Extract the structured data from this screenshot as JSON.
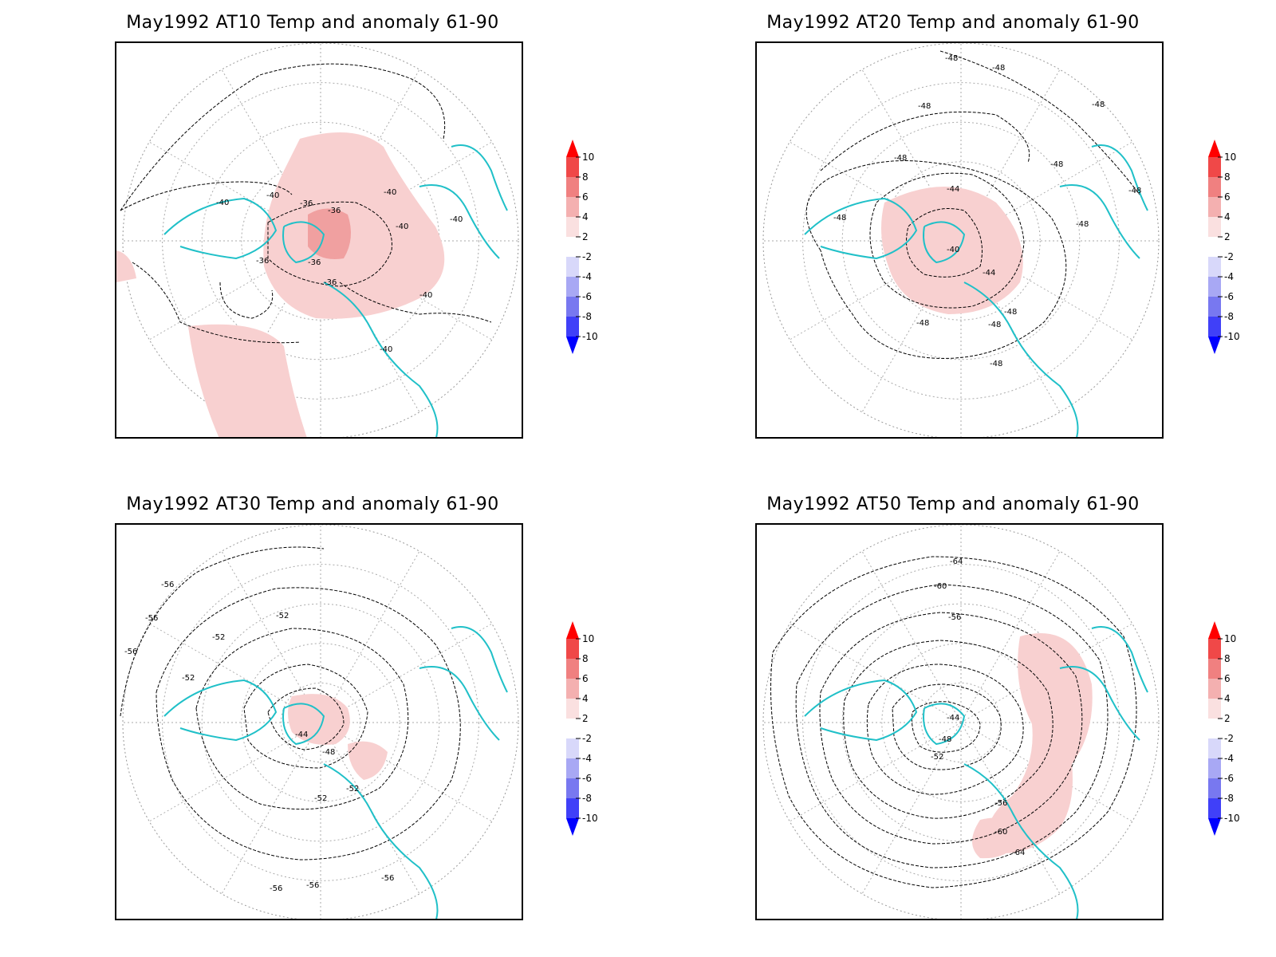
{
  "panels": [
    {
      "title": "May1992 AT10 Temp and anomaly 61-90",
      "contour_labels": [
        "-40",
        "-40",
        "-40",
        "-40",
        "-36",
        "-36",
        "-36",
        "-36",
        "-40",
        "-40",
        "-40",
        "-36"
      ],
      "colorbar_labels": [
        "10",
        "8",
        "6",
        "4",
        "2",
        "-2",
        "-4",
        "-6",
        "-8",
        "-10"
      ]
    },
    {
      "title": "May1992 AT20 Temp and anomaly 61-90",
      "contour_labels": [
        "-48",
        "-48",
        "-48",
        "-48",
        "-48",
        "-48",
        "-48",
        "-44",
        "-40",
        "-44",
        "-48",
        "-48",
        "-48",
        "-48",
        "-48",
        "-48"
      ],
      "colorbar_labels": [
        "10",
        "8",
        "6",
        "4",
        "2",
        "-2",
        "-4",
        "-6",
        "-8",
        "-10"
      ]
    },
    {
      "title": "May1992 AT30 Temp and anomaly 61-90",
      "contour_labels": [
        "-56",
        "-56",
        "-56",
        "-52",
        "-52",
        "-52",
        "-44",
        "-48",
        "-52",
        "-52",
        "-56",
        "-56",
        "-56"
      ],
      "colorbar_labels": [
        "10",
        "8",
        "6",
        "4",
        "2",
        "-2",
        "-4",
        "-6",
        "-8",
        "-10"
      ]
    },
    {
      "title": "May1992 AT50 Temp and anomaly 61-90",
      "contour_labels": [
        "-64",
        "-60",
        "-56",
        "-44",
        "-48",
        "-52",
        "-56",
        "-60",
        "-64"
      ],
      "colorbar_labels": [
        "10",
        "8",
        "6",
        "4",
        "2",
        "-2",
        "-4",
        "-6",
        "-8",
        "-10"
      ]
    }
  ],
  "colors": {
    "coastline": "#20c0c8",
    "anomaly_positive_light": "#f8d0d0",
    "anomaly_positive_mid": "#f0a0a0",
    "colorbar": [
      "#0000ff",
      "#4040f8",
      "#7878f0",
      "#a8a8f4",
      "#d8d8fa",
      "#ffffff",
      "#fae0e0",
      "#f4b0b0",
      "#f08080",
      "#f04848",
      "#ff0000"
    ]
  }
}
